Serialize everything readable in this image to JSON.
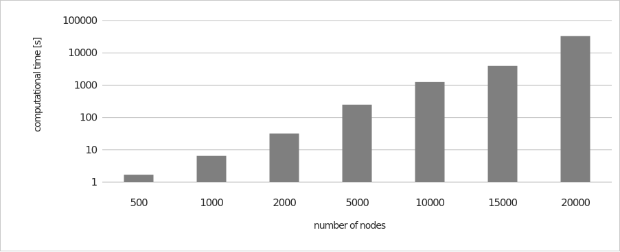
{
  "chart_data": {
    "type": "bar",
    "categories": [
      "500",
      "1000",
      "2000",
      "5000",
      "10000",
      "15000",
      "20000"
    ],
    "values": [
      1.7,
      6.5,
      32,
      250,
      1250,
      4000,
      33000
    ],
    "xlabel": "number of nodes",
    "ylabel": "computational time [s]",
    "yscale": "log",
    "ylim": [
      1,
      100000
    ],
    "yticks": [
      "1",
      "10",
      "100",
      "1000",
      "10000",
      "100000"
    ],
    "grid": "horizontal",
    "legend": "none",
    "colors": {
      "bar": "#7f7f7f",
      "grid": "#bfbfbf",
      "text": "#262626"
    }
  }
}
